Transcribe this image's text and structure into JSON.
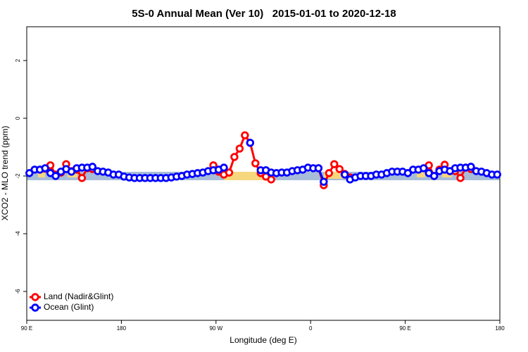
{
  "chart_data": {
    "type": "line",
    "title": "5S-0 Annual Mean (Ver 10)   2015-01-01 to 2020-12-18",
    "x_label": "Longitude (deg E)",
    "y_label": "XCO2 - MLO trend (ppm)",
    "xlim": [
      90,
      540
    ],
    "xticks": [
      {
        "value": 90,
        "label": "90 E"
      },
      180,
      {
        "value": 270,
        "label": "90 W"
      },
      {
        "value": 360,
        "label": "0"
      },
      {
        "value": 450,
        "label": "90 E"
      },
      {
        "value": 540,
        "label": "180"
      }
    ],
    "ylim": [
      -7,
      3.17
    ],
    "yticks": [
      2,
      0,
      -2,
      -4,
      -6
    ],
    "legend": "bottom-left",
    "x": [
      92.5,
      97.5,
      102.5,
      107.5,
      112.5,
      117.5,
      122.5,
      127.5,
      132.5,
      137.5,
      142.5,
      147.5,
      152.5,
      157.5,
      162.5,
      167.5,
      172.5,
      177.5,
      182.5,
      187.5,
      192.5,
      197.5,
      202.5,
      207.5,
      212.5,
      217.5,
      222.5,
      227.5,
      232.5,
      237.5,
      242.5,
      247.5,
      252.5,
      257.5,
      262.5,
      267.5,
      272.5,
      277.5,
      282.5,
      287.5,
      292.5,
      297.5,
      302.5,
      307.5,
      312.5,
      317.5,
      322.5,
      327.5,
      332.5,
      337.5,
      342.5,
      347.5,
      352.5,
      357.5,
      362.5,
      367.5,
      372.5,
      377.5,
      382.5,
      387.5,
      392.5,
      397.5,
      402.5,
      407.5,
      412.5,
      417.5,
      422.5,
      427.5,
      432.5,
      437.5,
      442.5,
      447.5,
      452.5,
      457.5,
      462.5,
      467.5,
      472.5,
      477.5,
      482.5,
      487.5,
      492.5,
      497.5,
      502.5,
      507.5,
      512.5,
      517.5,
      522.5,
      527.5,
      532.5,
      537.5
    ],
    "series": [
      {
        "name": "Land (Nadir&Glint)",
        "color": "#ff0000",
        "values": [
          null,
          null,
          null,
          -1.75,
          -1.63,
          -1.95,
          -1.88,
          -1.59,
          -1.83,
          -1.78,
          -2.07,
          -1.73,
          -1.76,
          null,
          null,
          null,
          null,
          null,
          null,
          null,
          null,
          null,
          null,
          null,
          null,
          null,
          null,
          null,
          null,
          null,
          null,
          null,
          null,
          null,
          null,
          -1.63,
          -1.85,
          -1.95,
          -1.88,
          -1.34,
          -1.05,
          -0.59,
          -0.85,
          -1.56,
          -1.9,
          -2.02,
          -2.12,
          null,
          null,
          null,
          null,
          null,
          null,
          null,
          null,
          -1.73,
          -2.32,
          -1.9,
          -1.59,
          -1.76,
          -1.93,
          -2.05,
          null,
          null,
          null,
          null,
          null,
          null,
          null,
          null,
          null,
          null,
          null,
          null,
          null,
          null,
          -1.63,
          -2.0,
          -1.78,
          -1.61,
          -1.83,
          -1.83,
          -2.07,
          -1.71,
          -1.76,
          null,
          null,
          null,
          null,
          null
        ]
      },
      {
        "name": "Ocean (Glint)",
        "color": "#0000ff",
        "values": [
          -1.9,
          -1.78,
          -1.78,
          -1.73,
          -1.9,
          -2.0,
          -1.85,
          -1.76,
          -1.85,
          -1.73,
          -1.71,
          -1.71,
          -1.68,
          -1.83,
          -1.85,
          -1.88,
          -1.95,
          -1.95,
          -2.02,
          -2.05,
          -2.07,
          -2.07,
          -2.07,
          -2.07,
          -2.07,
          -2.07,
          -2.07,
          -2.05,
          -2.02,
          -2.0,
          -1.95,
          -1.93,
          -1.9,
          -1.88,
          -1.83,
          -1.8,
          -1.78,
          -1.71,
          null,
          null,
          null,
          null,
          -0.85,
          null,
          -1.8,
          -1.8,
          -1.88,
          -1.9,
          -1.88,
          -1.88,
          -1.83,
          -1.8,
          -1.78,
          -1.71,
          -1.73,
          -1.73,
          -2.2,
          null,
          null,
          null,
          -1.95,
          -2.12,
          -2.05,
          -2.0,
          -2.0,
          -2.0,
          -1.95,
          -1.95,
          -1.9,
          -1.85,
          -1.85,
          -1.85,
          -1.9,
          -1.78,
          -1.78,
          -1.73,
          -1.9,
          -2.0,
          -1.83,
          -1.78,
          -1.83,
          -1.73,
          -1.71,
          -1.71,
          -1.68,
          -1.83,
          -1.85,
          -1.9,
          -1.95,
          -1.95
        ]
      }
    ]
  }
}
